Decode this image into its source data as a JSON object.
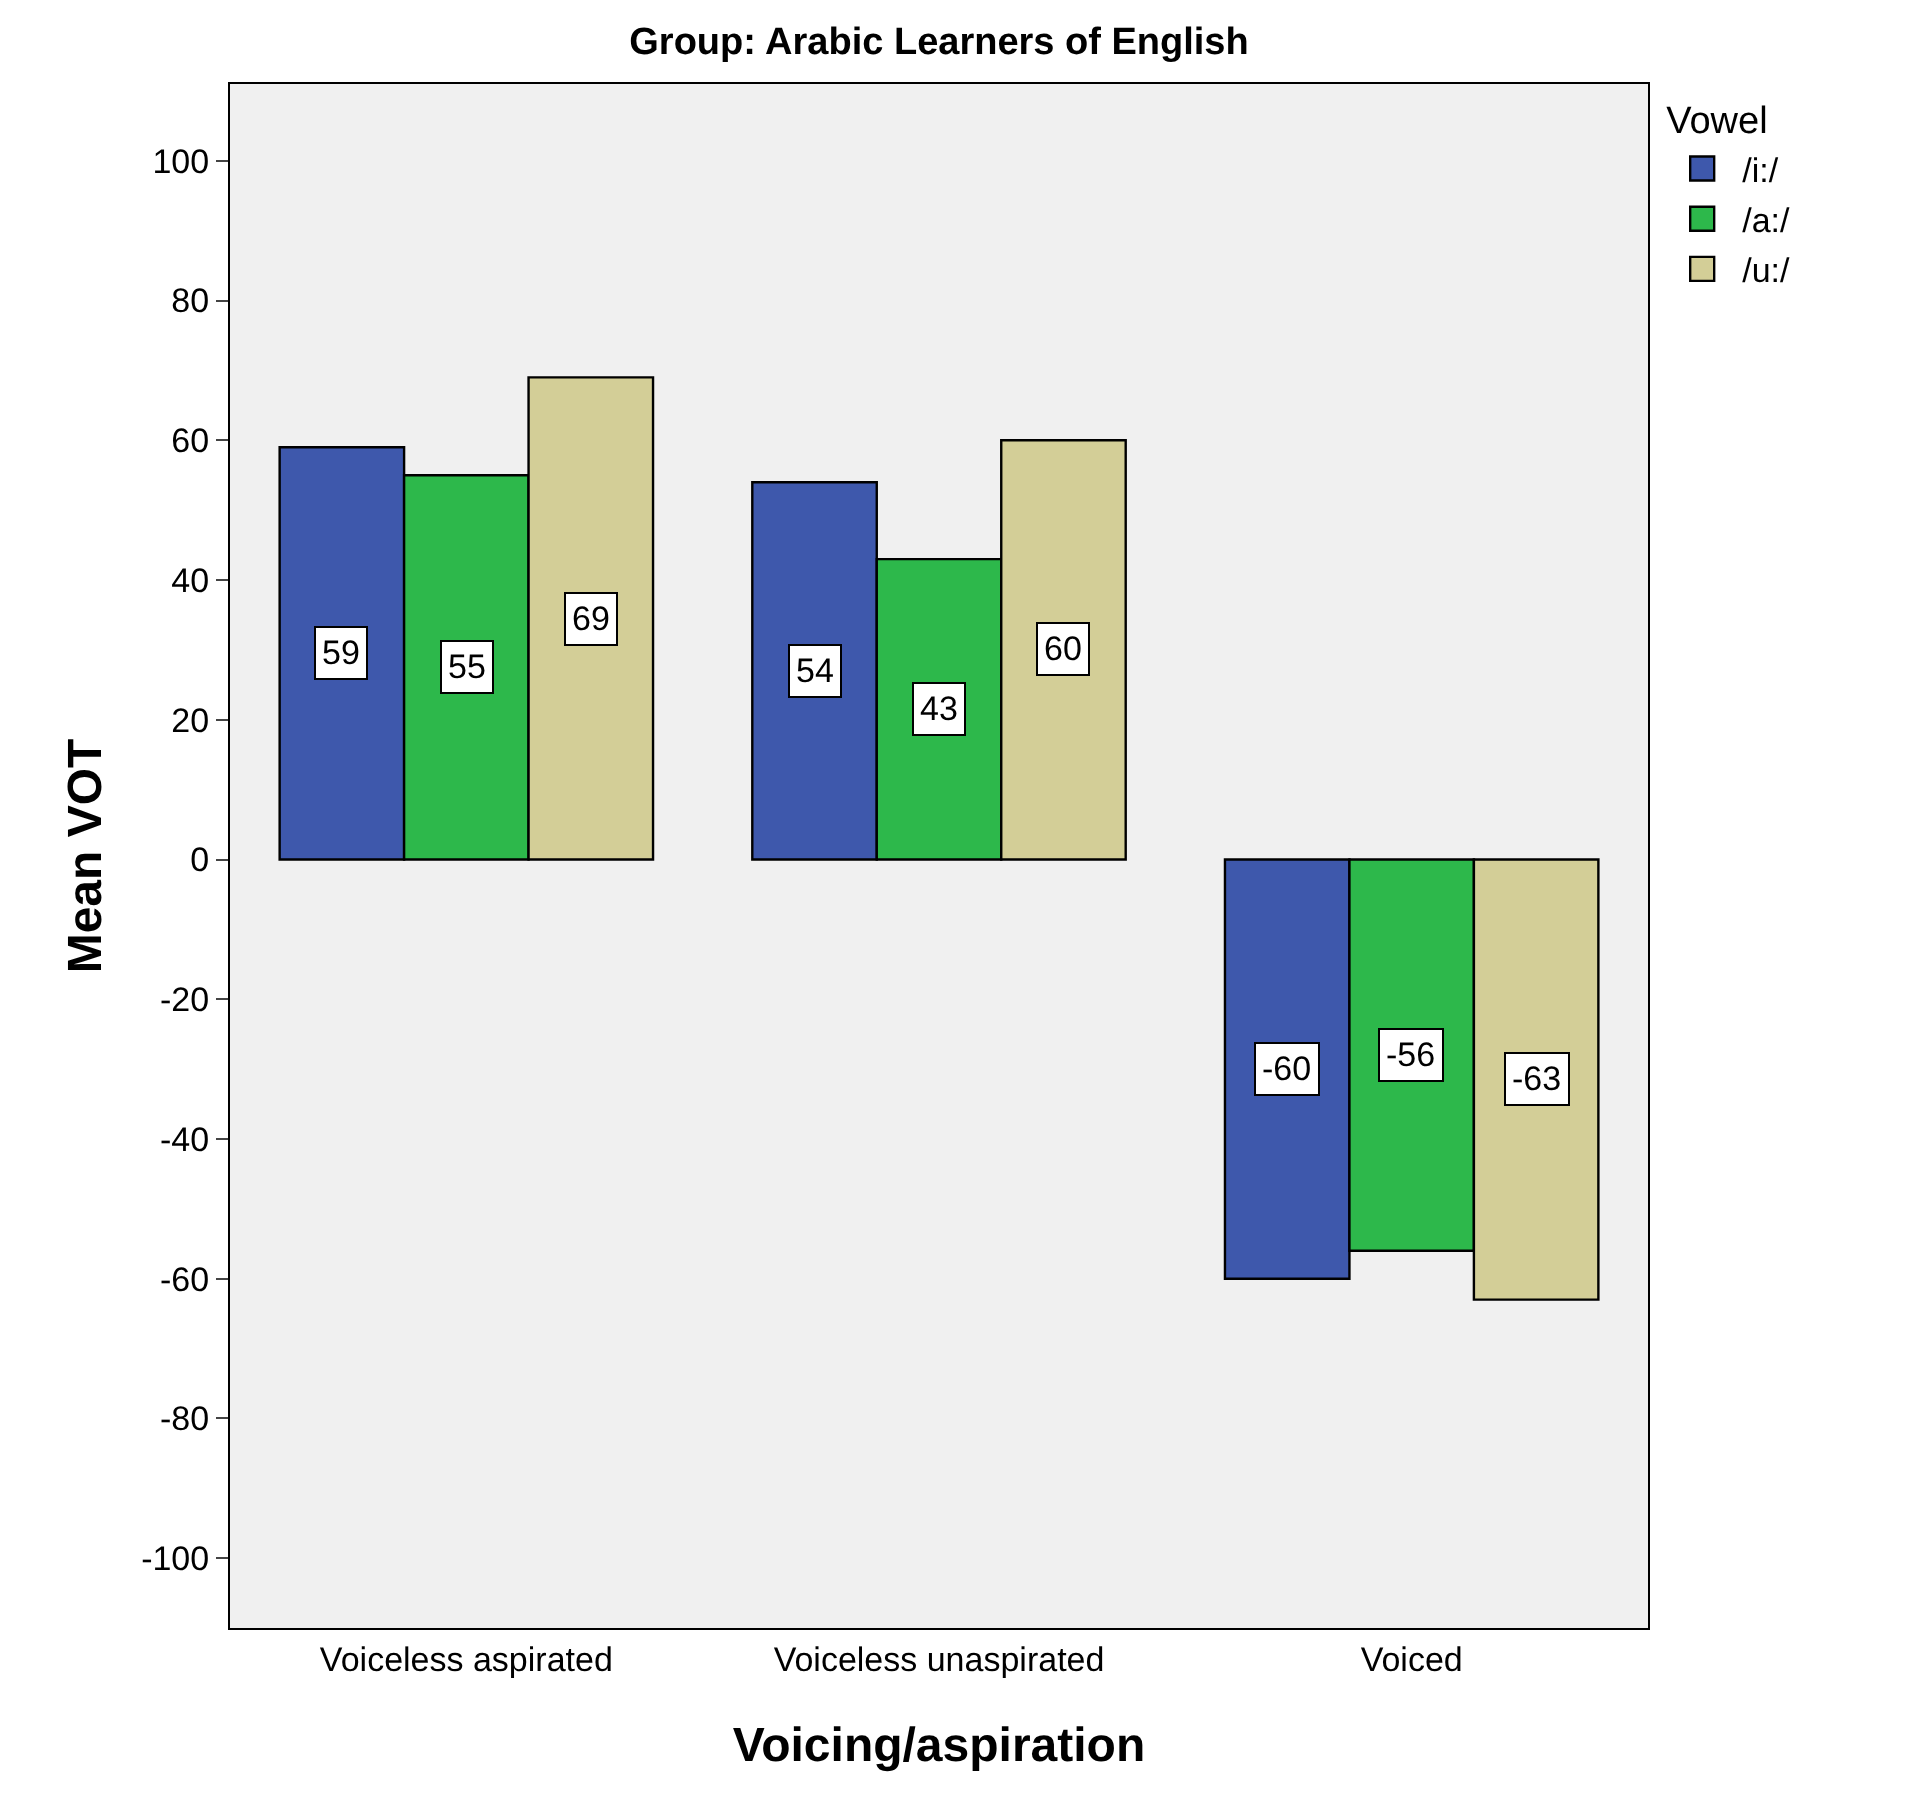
{
  "chart_data": {
    "type": "bar",
    "title": "Group: Arabic Learners of English",
    "xlabel": "Voicing/aspiration",
    "ylabel": "Mean VOT",
    "legend_title": "Vowel",
    "categories": [
      "Voiceless aspirated",
      "Voiceless unaspirated",
      "Voiced"
    ],
    "series": [
      {
        "name": "/i:/",
        "color": "#3e58ac",
        "values": [
          59,
          54,
          -60
        ]
      },
      {
        "name": "/a:/",
        "color": "#2db84b",
        "values": [
          55,
          43,
          -56
        ]
      },
      {
        "name": "/u:/",
        "color": "#d3ce97",
        "values": [
          69,
          60,
          -63
        ]
      }
    ],
    "ylim": [
      -110,
      111
    ],
    "yticks": [
      -100,
      -80,
      -60,
      -40,
      -20,
      0,
      20,
      40,
      60,
      80,
      100
    ],
    "data_labels": true,
    "grid": false,
    "legend": "top right"
  }
}
